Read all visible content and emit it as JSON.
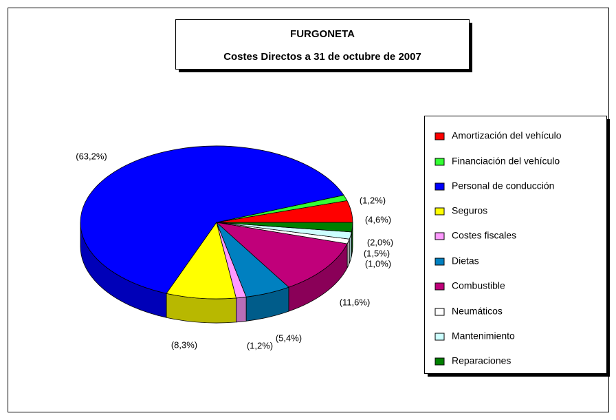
{
  "chart_data": {
    "type": "pie",
    "title": "FURGONETA",
    "subtitle": "Costes Directos a 31 de octubre de 2007",
    "categories": [
      "Amortización del vehículo",
      "Financiación del vehículo",
      "Personal de conducción",
      "Seguros",
      "Costes fiscales",
      "Dietas",
      "Combustible",
      "Neumáticos",
      "Mantenimiento",
      "Reparaciones"
    ],
    "values": [
      4.6,
      1.2,
      63.2,
      8.3,
      1.2,
      5.4,
      11.6,
      1.0,
      1.5,
      2.0
    ],
    "value_labels": [
      "(4,6%)",
      "(1,2%)",
      "(63,2%)",
      "(8,3%)",
      "(1,2%)",
      "(5,4%)",
      "(11,6%)",
      "(1,0%)",
      "(1,5%)",
      "(2,0%)"
    ],
    "colors": [
      "#ff0000",
      "#33ff33",
      "#0000ff",
      "#ffff00",
      "#ff99ff",
      "#0080c0",
      "#c0007a",
      "#ffffff",
      "#ccffff",
      "#008000"
    ],
    "legend": "right"
  }
}
